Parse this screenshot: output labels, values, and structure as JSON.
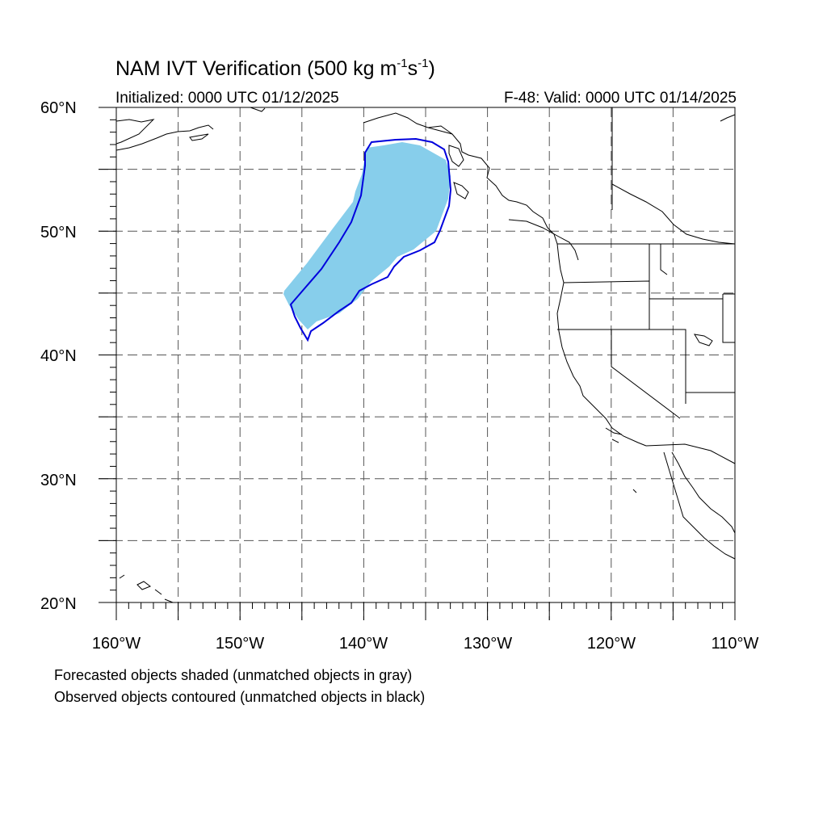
{
  "header": {
    "title_main": "NAM IVT Verification (500 kg m",
    "title_exp1": "-1",
    "title_mid": "s",
    "title_exp2": "-1",
    "title_end": ")",
    "initialized": "Initialized: 0000 UTC 01/12/2025",
    "valid": "F-48: Valid: 0000 UTC 01/14/2025"
  },
  "map": {
    "lat_labels": [
      "60°N",
      "50°N",
      "40°N",
      "30°N",
      "20°N"
    ],
    "lon_labels": [
      "160°W",
      "150°W",
      "140°W",
      "130°W",
      "120°W",
      "110°W"
    ],
    "lat_range": [
      20,
      60
    ],
    "lon_range": [
      -160,
      -110
    ],
    "grid_lats": [
      25,
      30,
      35,
      40,
      45,
      50,
      55
    ],
    "grid_lons": [
      -155,
      -150,
      -145,
      -140,
      -135,
      -130,
      -125,
      -120,
      -115
    ],
    "forecast_object_color": "#87ceeb",
    "observed_contour_color": "#0000dd",
    "coastline_color": "#000000"
  },
  "footer": {
    "note_forecast": "Forecasted objects shaded (unmatched objects in gray)",
    "note_observed": "Observed objects contoured (unmatched objects in black)"
  }
}
